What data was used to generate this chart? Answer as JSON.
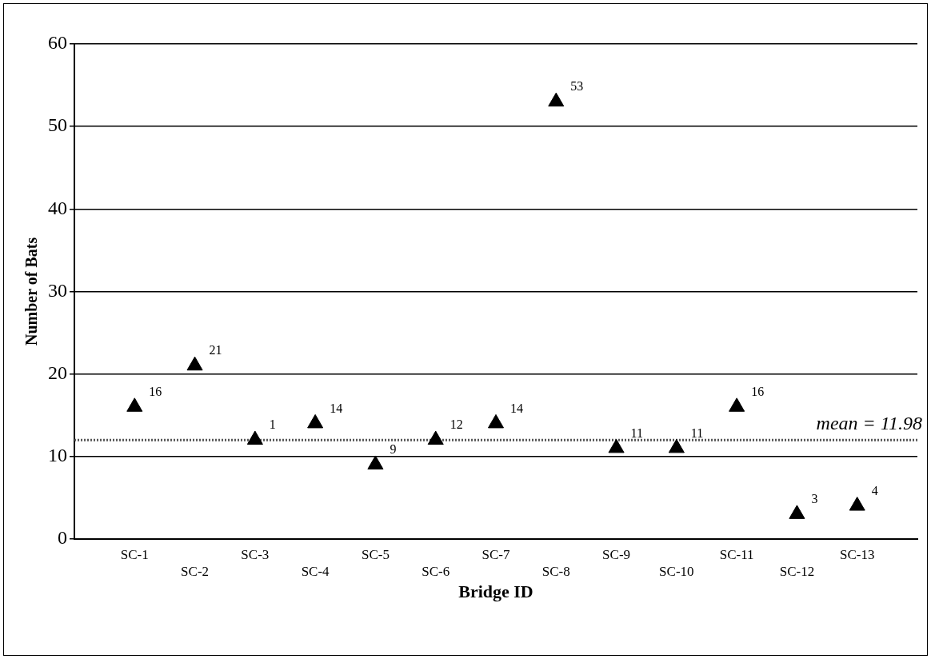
{
  "chart_data": {
    "type": "scatter",
    "xlabel": "Bridge ID",
    "ylabel": "Number of Bats",
    "categories": [
      "SC-1",
      "SC-2",
      "SC-3",
      "SC-4",
      "SC-5",
      "SC-6",
      "SC-7",
      "SC-8",
      "SC-9",
      "SC-10",
      "SC-11",
      "SC-12",
      "SC-13"
    ],
    "series": [
      {
        "color": "#000000",
        "values": [
          16,
          21,
          12,
          14,
          9,
          12,
          14,
          53,
          11,
          11,
          16,
          3,
          4
        ],
        "value_labels": [
          "16",
          "21",
          null,
          "14",
          "9",
          "12",
          "14",
          "53",
          "11",
          "11",
          "16",
          "3",
          "4"
        ]
      }
    ],
    "annotations": [
      {
        "text": "1",
        "x": "SC-3",
        "y": 12
      }
    ],
    "ylim": [
      0,
      60
    ],
    "yticks": [
      0,
      10,
      20,
      30,
      40,
      50,
      60
    ],
    "grid": "y",
    "legend": false,
    "marker": "triangle",
    "ref_lines": [
      {
        "axis": "y",
        "value": 11.98,
        "label": "mean = 11.98",
        "color": "#555555",
        "line_style": "dotted"
      }
    ]
  }
}
